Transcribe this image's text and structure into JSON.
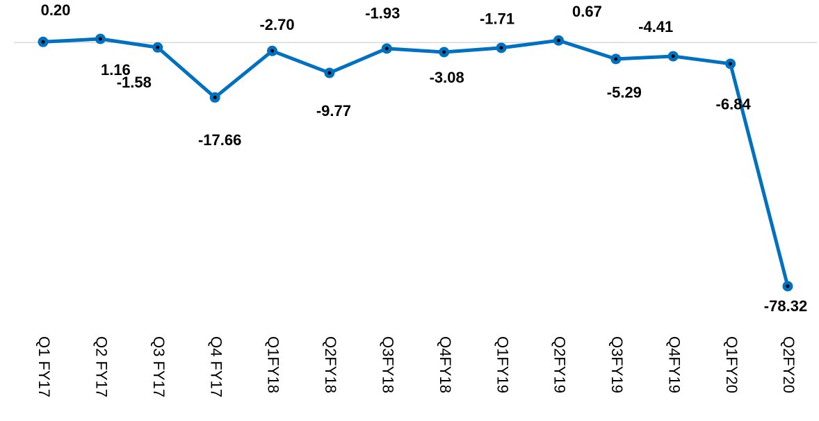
{
  "chart_data": {
    "type": "line",
    "categories": [
      "Q1 FY17",
      "Q2 FY17",
      "Q3 FY17",
      "Q4 FY17",
      "Q1FY18",
      "Q2FY18",
      "Q3FY18",
      "Q4FY18",
      "Q1FY19",
      "Q2FY19",
      "Q3FY19",
      "Q4FY19",
      "Q1FY20",
      "Q2FY20"
    ],
    "series": [
      {
        "color": "#0070c0",
        "values": [
          0.2,
          1.16,
          -1.58,
          -17.66,
          -2.7,
          -9.77,
          -1.93,
          -3.08,
          -1.71,
          0.67,
          -5.29,
          -4.41,
          -6.84,
          -78.32
        ],
        "value_labels": [
          "0.20",
          "1.16",
          "-1.58",
          "-17.66",
          "-2.70",
          "-9.77",
          "-1.93",
          "-3.08",
          "-1.71",
          "0.67",
          "-5.29",
          "-4.41",
          "-6.84",
          "-78.32"
        ]
      }
    ]
  }
}
